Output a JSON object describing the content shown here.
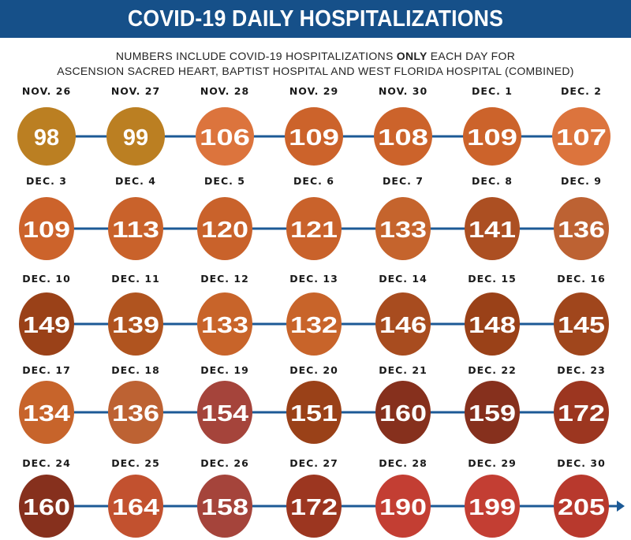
{
  "header": {
    "title": "COVID-19 DAILY HOSPITALIZATIONS",
    "subtitle_line1_pre": "NUMBERS INCLUDE COVID-19 HOSPITALIZATIONS ",
    "subtitle_line1_bold": "ONLY",
    "subtitle_line1_post": " EACH DAY FOR",
    "subtitle_line2": "ASCENSION SACRED HEART, BAPTIST HOSPITAL AND WEST FLORIDA HOSPITAL (COMBINED)"
  },
  "colors": {
    "banner": "#165089",
    "line": "#1c5a96"
  },
  "chart_data": {
    "type": "timeline",
    "title": "COVID-19 DAILY HOSPITALIZATIONS",
    "subtitle": "NUMBERS INCLUDE COVID-19 HOSPITALIZATIONS ONLY EACH DAY FOR ASCENSION SACRED HEART, BAPTIST HOSPITAL AND WEST FLORIDA HOSPITAL (COMBINED)",
    "columns_per_row": 7,
    "points": [
      {
        "date": "NOV. 26",
        "value": 98,
        "color": "#bb7f22"
      },
      {
        "date": "NOV. 27",
        "value": 99,
        "color": "#bb7f22"
      },
      {
        "date": "NOV. 28",
        "value": 106,
        "color": "#dc743d"
      },
      {
        "date": "NOV. 29",
        "value": 109,
        "color": "#cc632b"
      },
      {
        "date": "NOV. 30",
        "value": 108,
        "color": "#cc632b"
      },
      {
        "date": "DEC. 1",
        "value": 109,
        "color": "#cc632b"
      },
      {
        "date": "DEC. 2",
        "value": 107,
        "color": "#dc743d"
      },
      {
        "date": "DEC. 3",
        "value": 109,
        "color": "#cc632b"
      },
      {
        "date": "DEC. 4",
        "value": 113,
        "color": "#c9622b"
      },
      {
        "date": "DEC. 5",
        "value": 120,
        "color": "#c9622b"
      },
      {
        "date": "DEC. 6",
        "value": 121,
        "color": "#c9622b"
      },
      {
        "date": "DEC. 7",
        "value": 133,
        "color": "#c5642d"
      },
      {
        "date": "DEC. 8",
        "value": 141,
        "color": "#ac4f22"
      },
      {
        "date": "DEC. 9",
        "value": 136,
        "color": "#bd6233"
      },
      {
        "date": "DEC. 10",
        "value": 149,
        "color": "#9a4118"
      },
      {
        "date": "DEC. 11",
        "value": 139,
        "color": "#b0541f"
      },
      {
        "date": "DEC. 12",
        "value": 133,
        "color": "#c8642a"
      },
      {
        "date": "DEC. 13",
        "value": 132,
        "color": "#c8642a"
      },
      {
        "date": "DEC. 14",
        "value": 146,
        "color": "#a84c1f"
      },
      {
        "date": "DEC. 15",
        "value": 148,
        "color": "#9a4118"
      },
      {
        "date": "DEC. 16",
        "value": 145,
        "color": "#a0461c"
      },
      {
        "date": "DEC. 17",
        "value": 134,
        "color": "#c7642b"
      },
      {
        "date": "DEC. 18",
        "value": 136,
        "color": "#bd6233"
      },
      {
        "date": "DEC. 19",
        "value": 154,
        "color": "#a5443b"
      },
      {
        "date": "DEC. 20",
        "value": 151,
        "color": "#9a4118"
      },
      {
        "date": "DEC. 21",
        "value": 160,
        "color": "#86301d"
      },
      {
        "date": "DEC. 22",
        "value": 159,
        "color": "#86301d"
      },
      {
        "date": "DEC. 23",
        "value": 172,
        "color": "#9c3620"
      },
      {
        "date": "DEC. 24",
        "value": 160,
        "color": "#86301d"
      },
      {
        "date": "DEC. 25",
        "value": 164,
        "color": "#c2512f"
      },
      {
        "date": "DEC. 26",
        "value": 158,
        "color": "#a5443b"
      },
      {
        "date": "DEC. 27",
        "value": 172,
        "color": "#9c3620"
      },
      {
        "date": "DEC. 28",
        "value": 190,
        "color": "#c33e33"
      },
      {
        "date": "DEC. 29",
        "value": 199,
        "color": "#c33e33"
      },
      {
        "date": "DEC. 30",
        "value": 205,
        "color": "#b8392d"
      }
    ],
    "final_arrow": true
  }
}
